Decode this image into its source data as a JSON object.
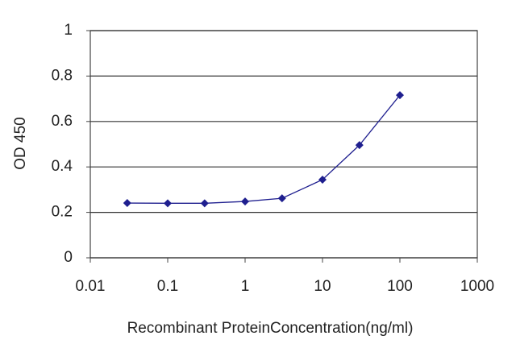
{
  "chart_data": {
    "type": "line",
    "x_label": "Recombinant ProteinConcentration(ng/ml)",
    "y_label": "OD 450",
    "x": [
      0.03,
      0.1,
      0.3,
      1,
      3,
      10,
      30,
      100
    ],
    "values": [
      0.241,
      0.24,
      0.24,
      0.248,
      0.262,
      0.344,
      0.496,
      0.716
    ],
    "color": "#1f1f8f",
    "xlog": true,
    "xlim": [
      0.01,
      1000
    ],
    "xticks": [
      0.01,
      0.1,
      1,
      10,
      100,
      1000
    ],
    "ylim": [
      0,
      1
    ],
    "yticks": [
      0,
      0.2,
      0.4,
      0.6,
      0.8,
      1
    ],
    "grid": true
  }
}
